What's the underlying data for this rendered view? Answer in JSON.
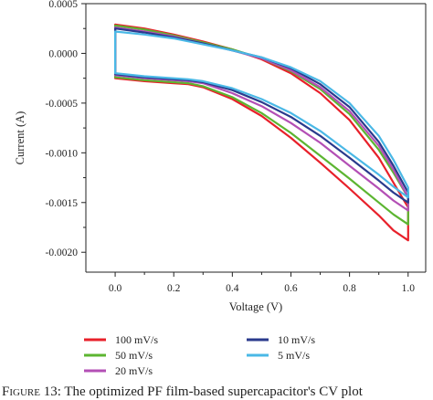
{
  "chart_data": {
    "type": "line",
    "xlabel": "Voltage (V)",
    "ylabel": "Current (A)",
    "xlim": [
      -0.1,
      1.06
    ],
    "ylim": [
      -0.0022,
      0.0005
    ],
    "xticks": [
      0.0,
      0.2,
      0.4,
      0.6,
      0.8,
      1.0
    ],
    "xtick_labels": [
      "0.0",
      "0.2",
      "0.4",
      "0.6",
      "0.8",
      "1.0"
    ],
    "yticks": [
      0.0005,
      0.0,
      -0.0005,
      -0.001,
      -0.0015,
      -0.002
    ],
    "ytick_labels": [
      "0.0005",
      "0.0000",
      "-0.0005",
      "-0.0010",
      "-0.0015",
      "-0.0020"
    ],
    "grid": false,
    "legend_position": "bottom",
    "series": [
      {
        "name": "100 mV/s",
        "color": "#e8202a",
        "upper": {
          "x": [
            0.0,
            0.1,
            0.2,
            0.3,
            0.4,
            0.5,
            0.6,
            0.7,
            0.8,
            0.9,
            0.95,
            1.0
          ],
          "y": [
            0.00029,
            0.00025,
            0.00019,
            0.00012,
            4e-05,
            -6e-05,
            -0.0002,
            -0.0004,
            -0.00067,
            -0.00105,
            -0.0013,
            -0.00155
          ]
        },
        "lower": {
          "x": [
            0.0,
            0.1,
            0.2,
            0.25,
            0.3,
            0.4,
            0.5,
            0.6,
            0.7,
            0.8,
            0.9,
            0.95,
            1.0
          ],
          "y": [
            -0.00025,
            -0.00028,
            -0.0003,
            -0.00031,
            -0.00034,
            -0.00046,
            -0.00063,
            -0.00085,
            -0.0011,
            -0.00136,
            -0.00163,
            -0.00178,
            -0.00188
          ]
        }
      },
      {
        "name": "50 mV/s",
        "color": "#5cb531",
        "upper": {
          "x": [
            0.0,
            0.1,
            0.2,
            0.3,
            0.4,
            0.5,
            0.6,
            0.7,
            0.8,
            0.9,
            0.95,
            1.0
          ],
          "y": [
            0.00028,
            0.00024,
            0.00018,
            0.00011,
            4e-05,
            -5e-05,
            -0.00018,
            -0.00036,
            -0.00061,
            -0.00097,
            -0.0012,
            -0.00145
          ]
        },
        "lower": {
          "x": [
            0.0,
            0.1,
            0.2,
            0.25,
            0.3,
            0.4,
            0.5,
            0.6,
            0.7,
            0.8,
            0.9,
            0.95,
            1.0
          ],
          "y": [
            -0.00024,
            -0.00027,
            -0.00029,
            -0.0003,
            -0.00033,
            -0.00044,
            -0.0006,
            -0.0008,
            -0.00103,
            -0.00126,
            -0.0015,
            -0.00162,
            -0.00172
          ]
        }
      },
      {
        "name": "20 mV/s",
        "color": "#b34fb5",
        "upper": {
          "x": [
            0.0,
            0.1,
            0.2,
            0.3,
            0.4,
            0.5,
            0.6,
            0.7,
            0.8,
            0.9,
            0.95,
            1.0
          ],
          "y": [
            0.00026,
            0.00022,
            0.00017,
            0.0001,
            3e-05,
            -5e-05,
            -0.00017,
            -0.00034,
            -0.00058,
            -0.00093,
            -0.00117,
            -0.00145
          ]
        },
        "lower": {
          "x": [
            0.0,
            0.1,
            0.2,
            0.25,
            0.3,
            0.4,
            0.5,
            0.6,
            0.7,
            0.8,
            0.9,
            0.95,
            1.0
          ],
          "y": [
            -0.00022,
            -0.00025,
            -0.00027,
            -0.00028,
            -0.0003,
            -0.0004,
            -0.00053,
            -0.0007,
            -0.0009,
            -0.00113,
            -0.00136,
            -0.00148,
            -0.00158
          ]
        }
      },
      {
        "name": "10 mV/s",
        "color": "#2a3a8c",
        "upper": {
          "x": [
            0.0,
            0.1,
            0.2,
            0.3,
            0.4,
            0.5,
            0.6,
            0.7,
            0.8,
            0.9,
            0.95,
            1.0
          ],
          "y": [
            0.00025,
            0.00021,
            0.00016,
            0.0001,
            3e-05,
            -4e-05,
            -0.00015,
            -0.00031,
            -0.00054,
            -0.00089,
            -0.00113,
            -0.0014
          ]
        },
        "lower": {
          "x": [
            0.0,
            0.1,
            0.2,
            0.25,
            0.3,
            0.4,
            0.5,
            0.6,
            0.7,
            0.8,
            0.9,
            0.95,
            1.0
          ],
          "y": [
            -0.00021,
            -0.00024,
            -0.00026,
            -0.00027,
            -0.00029,
            -0.00037,
            -0.00049,
            -0.00064,
            -0.00083,
            -0.00105,
            -0.00128,
            -0.0014,
            -0.0015
          ]
        }
      },
      {
        "name": "5 mV/s",
        "color": "#4ab8e6",
        "upper": {
          "x": [
            0.0,
            0.1,
            0.2,
            0.3,
            0.4,
            0.5,
            0.6,
            0.7,
            0.8,
            0.9,
            0.95,
            1.0
          ],
          "y": [
            0.00022,
            0.00019,
            0.00015,
            9e-05,
            3e-05,
            -4e-05,
            -0.00014,
            -0.00028,
            -0.0005,
            -0.00083,
            -0.00107,
            -0.00135
          ]
        },
        "lower": {
          "x": [
            0.0,
            0.1,
            0.2,
            0.25,
            0.3,
            0.4,
            0.5,
            0.6,
            0.7,
            0.8,
            0.9,
            0.95,
            1.0
          ],
          "y": [
            -0.0002,
            -0.00023,
            -0.00025,
            -0.00026,
            -0.00028,
            -0.00035,
            -0.00046,
            -0.0006,
            -0.00078,
            -0.001,
            -0.00122,
            -0.00134,
            -0.00145
          ]
        }
      }
    ]
  },
  "caption": {
    "label": "Figure 13:",
    "text": "The optimized PF film-based supercapacitor's CV plot"
  }
}
